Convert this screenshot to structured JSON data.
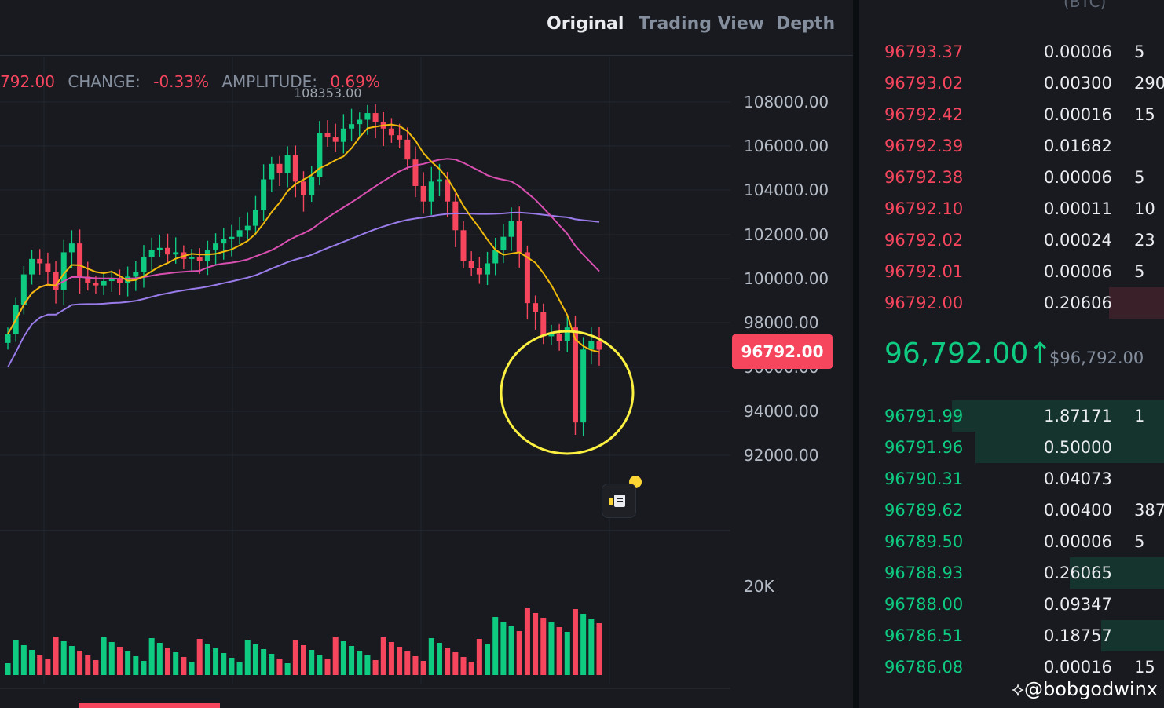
{
  "tabs": [
    {
      "label": "Original",
      "active": true
    },
    {
      "label": "Trading View",
      "active": false
    },
    {
      "label": "Depth",
      "active": false
    }
  ],
  "info": {
    "price_partial": "792.00",
    "change_label": "CHANGE:",
    "change_value": "-0.33%",
    "amplitude_label": "AMPLITUDE:",
    "amplitude_value": "0.69%"
  },
  "high_label": "108353.00",
  "price_axis": [
    "108000.00",
    "106000.00",
    "104000.00",
    "102000.00",
    "100000.00",
    "98000.00",
    "96000.00",
    "94000.00",
    "92000.00"
  ],
  "current_price_tag": "96792.00",
  "volume_axis": "20K",
  "orderbook": {
    "column_header": "(BTC)",
    "asks": [
      {
        "price": "96793.37",
        "amount": "0.00006",
        "total": "5"
      },
      {
        "price": "96793.02",
        "amount": "0.00300",
        "total": "290"
      },
      {
        "price": "96792.42",
        "amount": "0.00016",
        "total": "15"
      },
      {
        "price": "96792.39",
        "amount": "0.01682",
        "total": ""
      },
      {
        "price": "96792.38",
        "amount": "0.00006",
        "total": "5"
      },
      {
        "price": "96792.10",
        "amount": "0.00011",
        "total": "10"
      },
      {
        "price": "96792.02",
        "amount": "0.00024",
        "total": "23"
      },
      {
        "price": "96792.01",
        "amount": "0.00006",
        "total": "5"
      },
      {
        "price": "96792.00",
        "amount": "0.20606",
        "total": ""
      }
    ],
    "mid_price": "96,792.00",
    "mid_arrow": "↑",
    "mid_usd": "$96,792.00",
    "bids": [
      {
        "price": "96791.99",
        "amount": "1.87171",
        "total": "1"
      },
      {
        "price": "96791.96",
        "amount": "0.50000",
        "total": ""
      },
      {
        "price": "96790.31",
        "amount": "0.04073",
        "total": ""
      },
      {
        "price": "96789.62",
        "amount": "0.00400",
        "total": "387"
      },
      {
        "price": "96789.50",
        "amount": "0.00006",
        "total": "5"
      },
      {
        "price": "96788.93",
        "amount": "0.26065",
        "total": ""
      },
      {
        "price": "96788.00",
        "amount": "0.09347",
        "total": ""
      },
      {
        "price": "96786.51",
        "amount": "0.18757",
        "total": ""
      },
      {
        "price": "96786.08",
        "amount": "0.00016",
        "total": "15"
      }
    ]
  },
  "watermark": "@bobgodwinx",
  "colors": {
    "up": "#0ecb81",
    "down": "#f6465d",
    "ma7": "#f0b90b",
    "ma25": "#d94fb0",
    "ma99": "#9a7bea",
    "highlight": "#fcf041"
  }
}
